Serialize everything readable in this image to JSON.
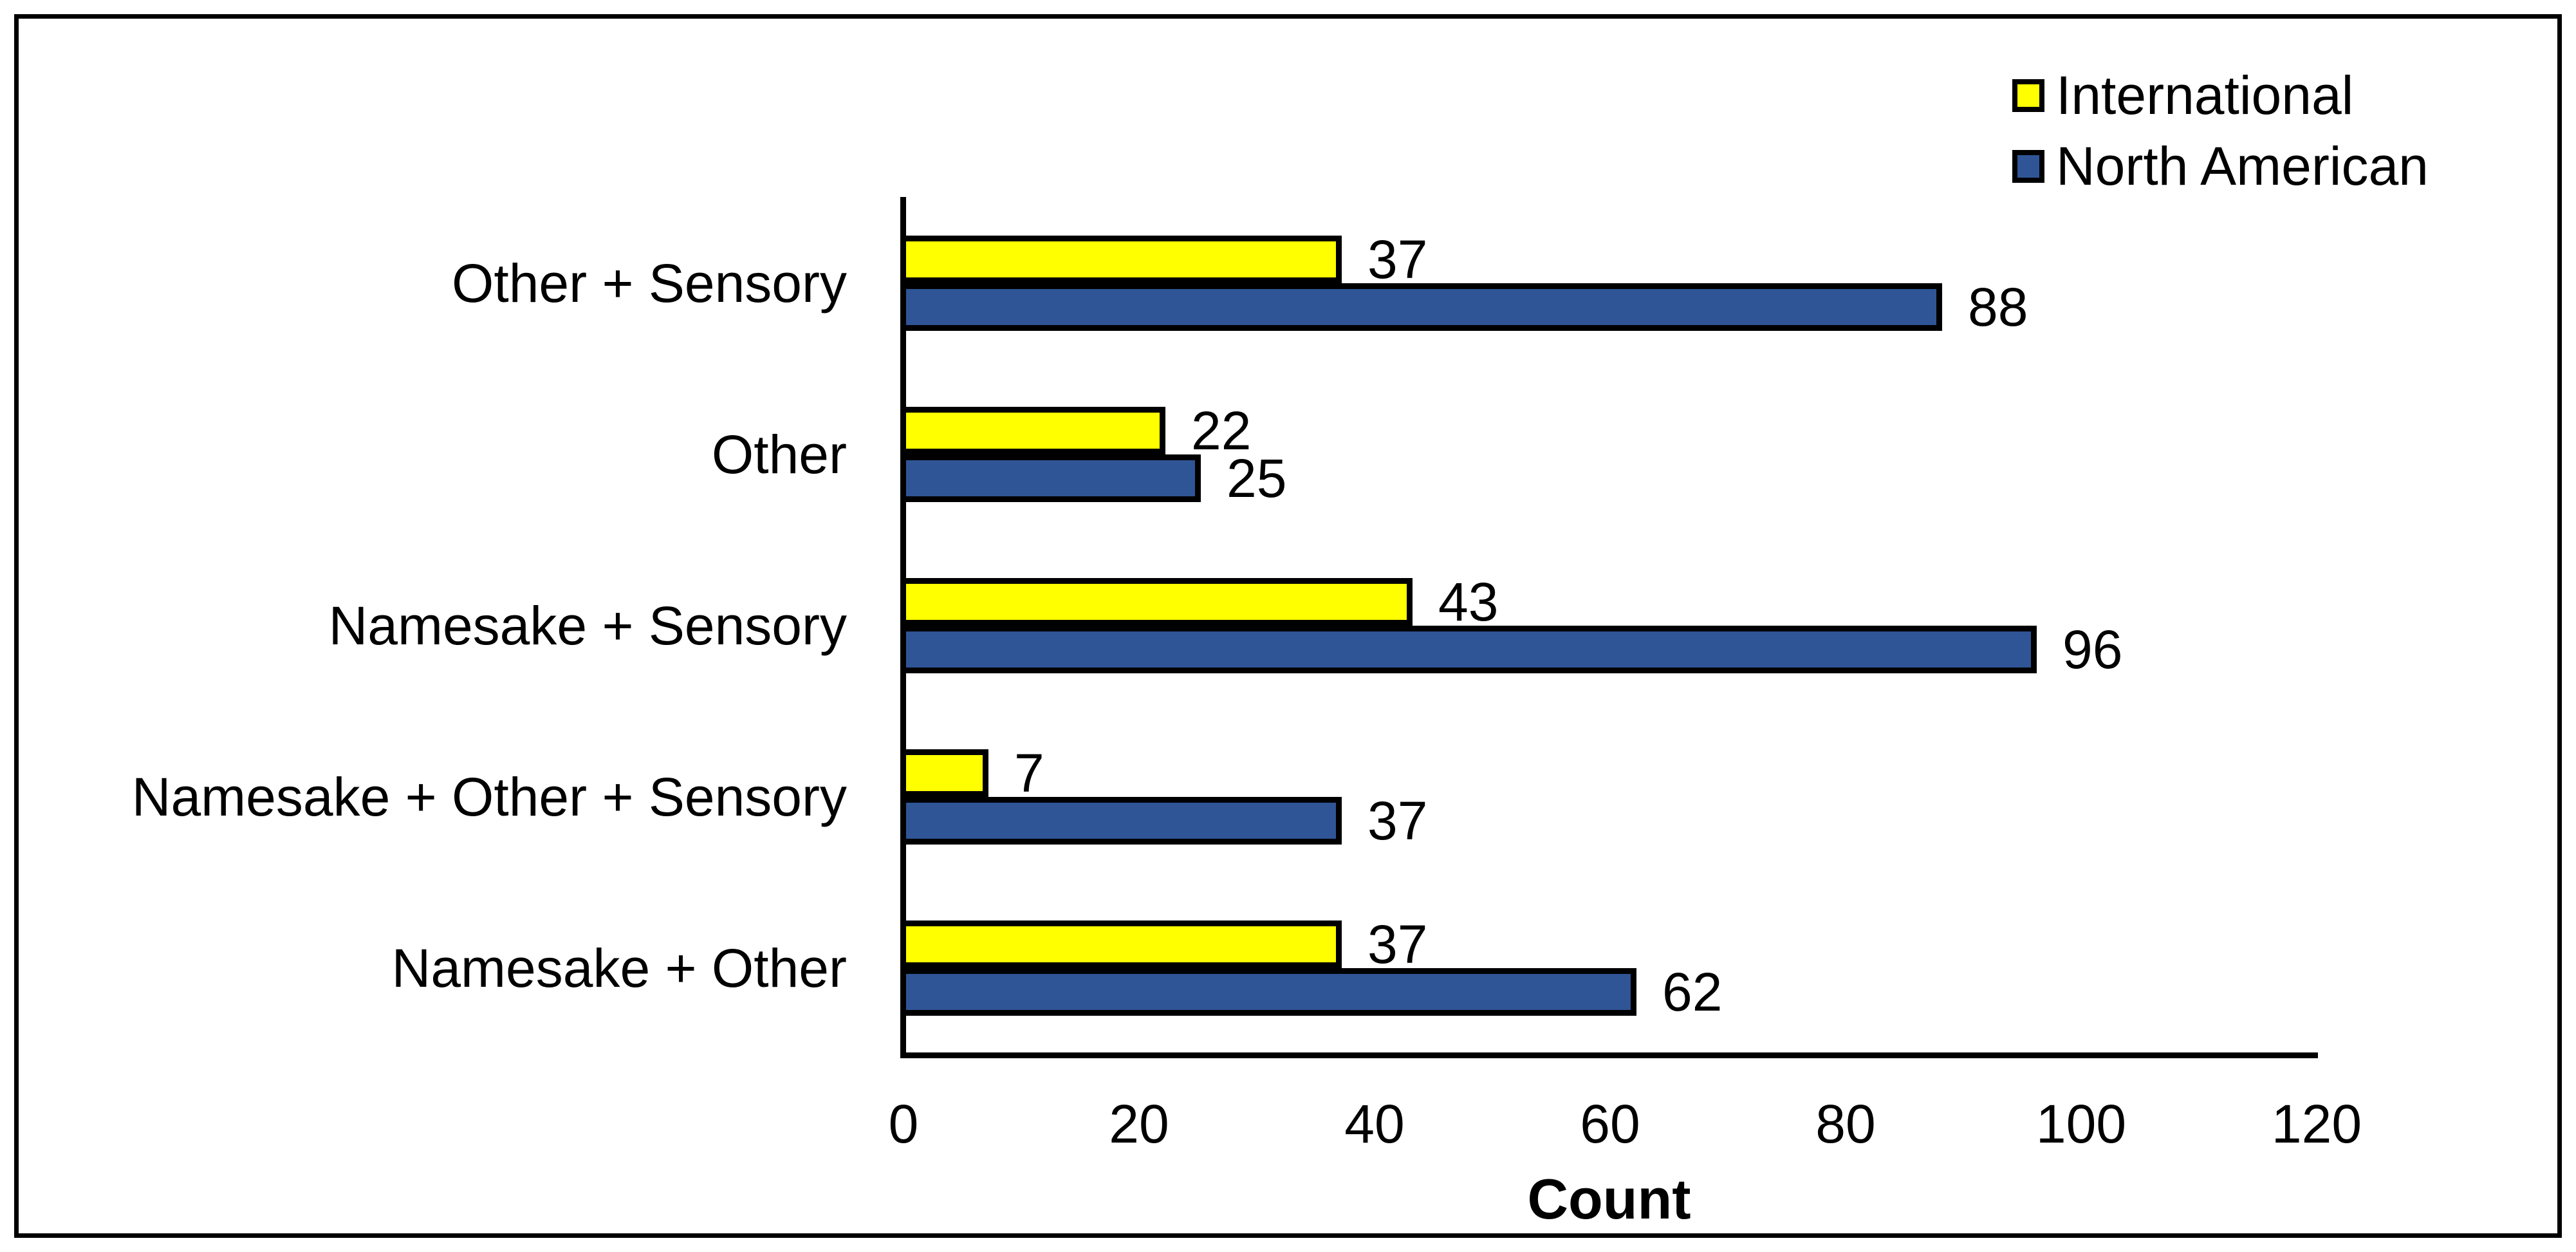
{
  "chart_data": {
    "type": "bar",
    "orientation": "horizontal",
    "title": "",
    "categories": [
      "Other + Sensory",
      "Other",
      "Namesake + Sensory",
      "Namesake + Other + Sensory",
      "Namesake + Other"
    ],
    "series": [
      {
        "name": "International",
        "color": "#FFFF00",
        "values": [
          37,
          22,
          43,
          7,
          37
        ]
      },
      {
        "name": "North American",
        "color": "#2F5596",
        "values": [
          88,
          25,
          96,
          37,
          62
        ]
      }
    ],
    "value_labels_shown": true,
    "xlabel": "Count",
    "x_ticks": [
      0,
      20,
      40,
      60,
      80,
      100,
      120
    ],
    "xlim": [
      0,
      120
    ],
    "grid": false,
    "legend_position": "top-right",
    "bar_border_color": "#000000",
    "background_color": "#FFFFFF"
  }
}
